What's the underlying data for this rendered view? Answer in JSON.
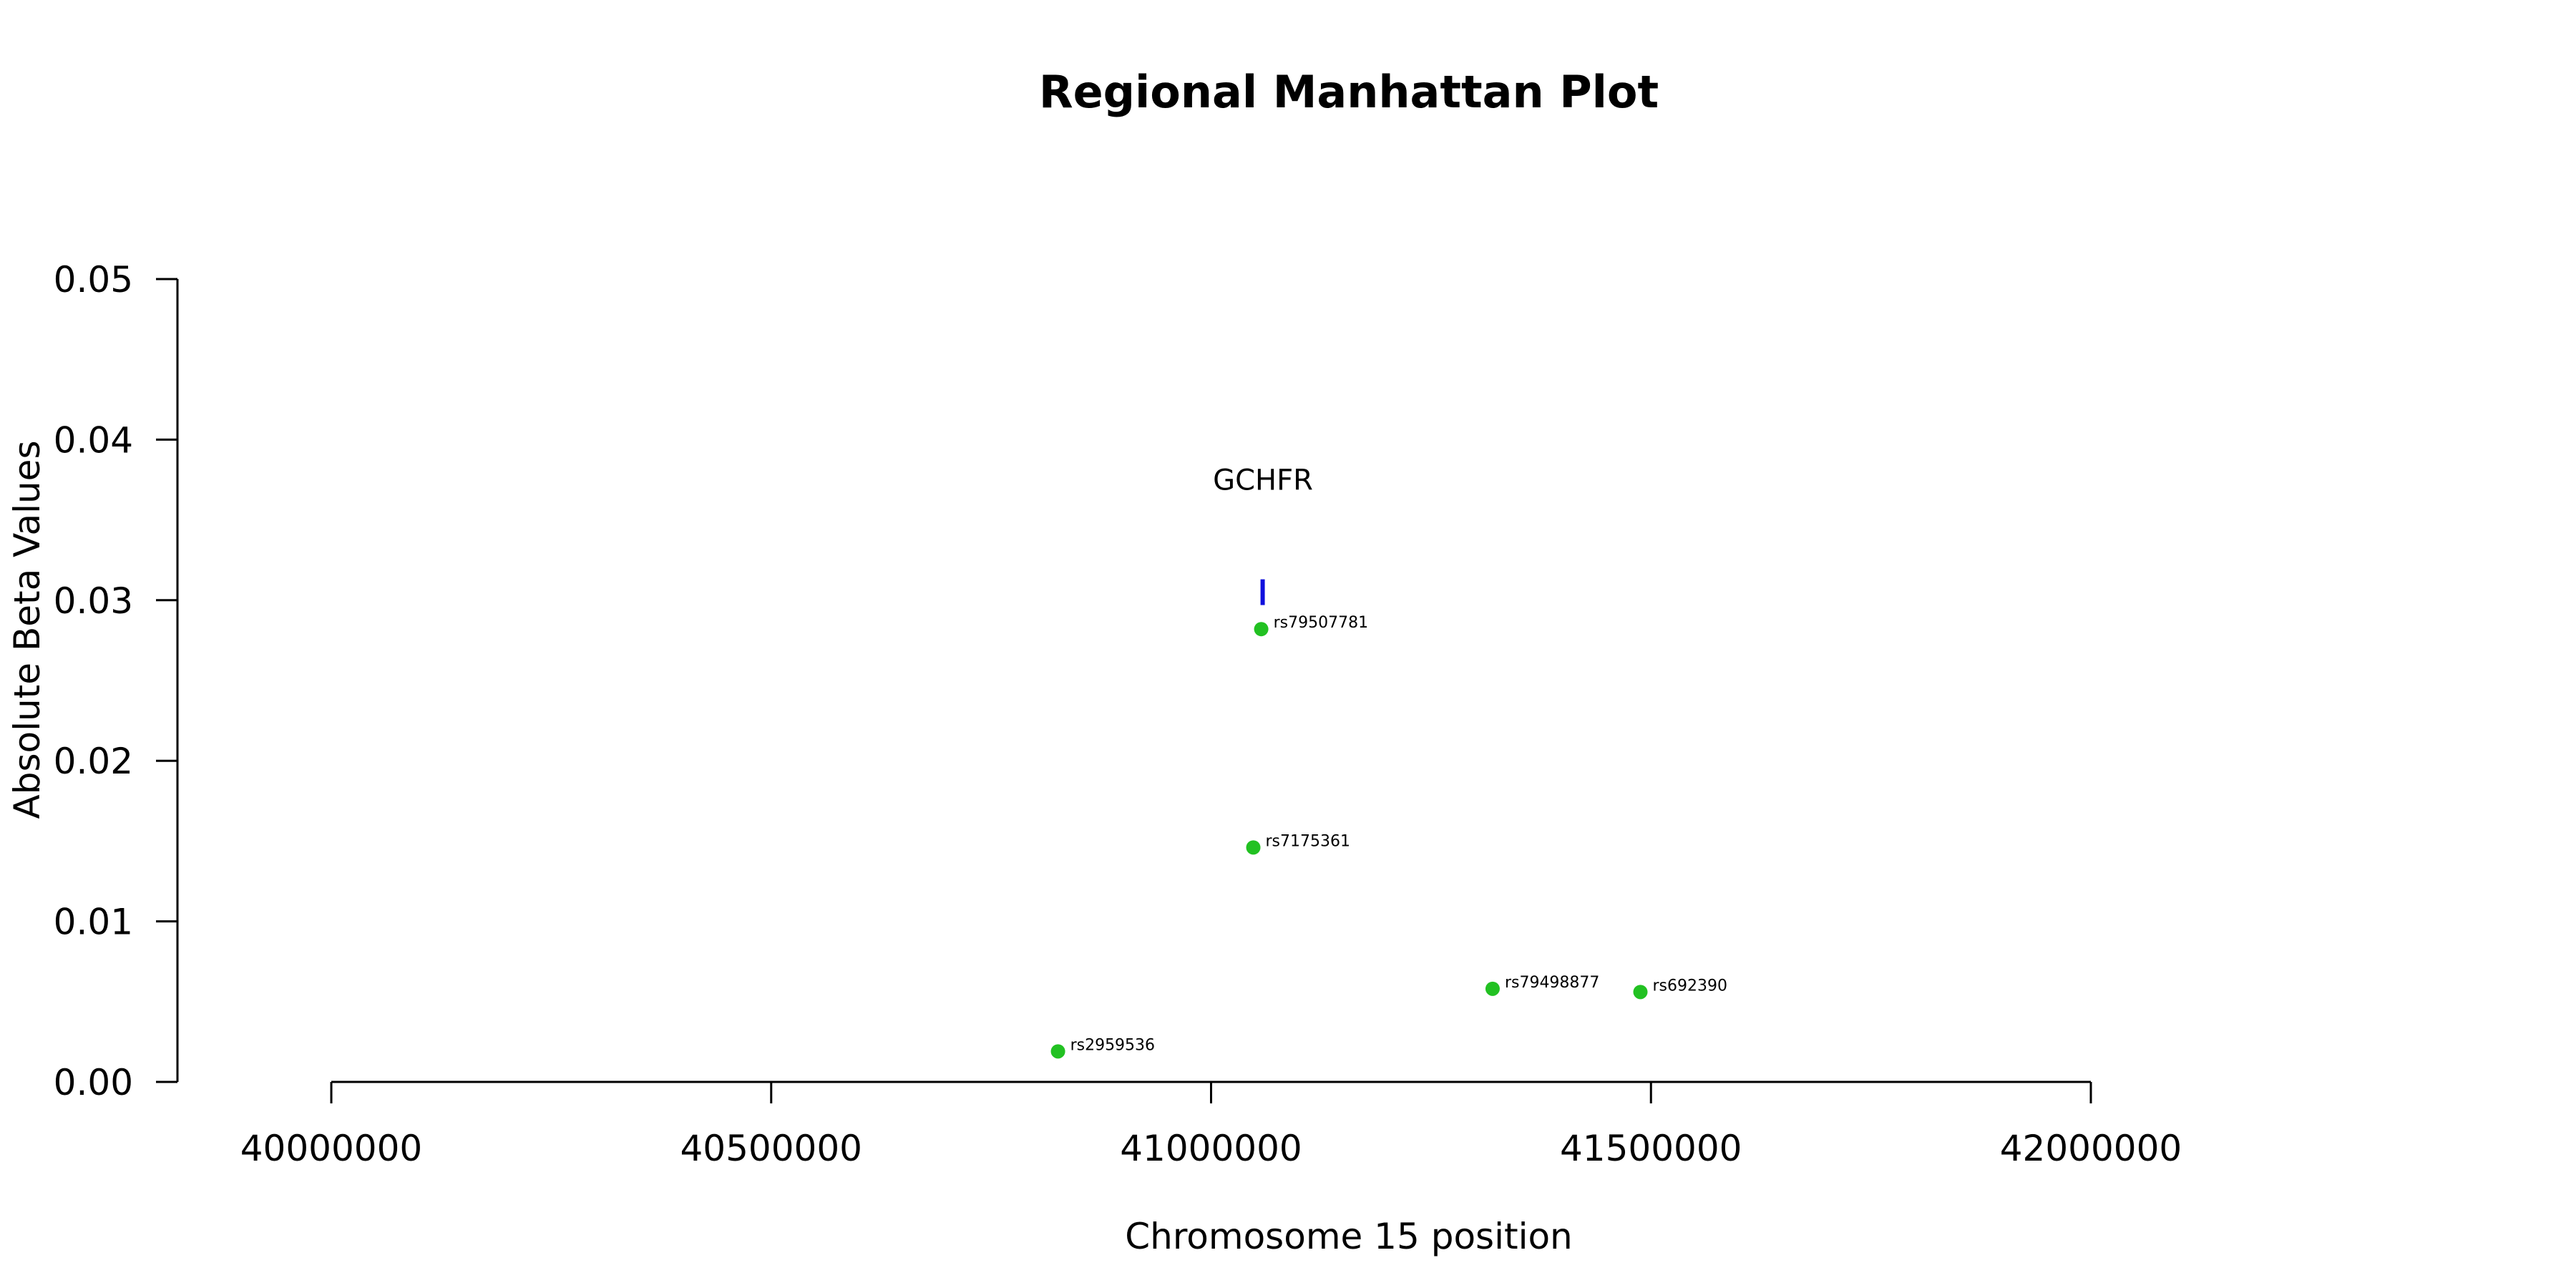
{
  "chart_data": {
    "type": "scatter",
    "title": "Regional Manhattan Plot",
    "xlabel": "Chromosome 15 position",
    "ylabel": "Absolute Beta Values",
    "xlim": [
      40000000,
      42000000
    ],
    "ylim": [
      0,
      0.05
    ],
    "x_ticks": [
      40000000,
      40500000,
      41000000,
      41500000,
      42000000
    ],
    "x_tick_labels": [
      "40000000",
      "40500000",
      "41000000",
      "41500000",
      "42000000"
    ],
    "y_ticks": [
      0,
      0.01,
      0.02,
      0.03,
      0.04,
      0.05
    ],
    "y_tick_labels": [
      "0.00",
      "0.01",
      "0.02",
      "0.03",
      "0.04",
      "0.05"
    ],
    "point_color": "#22c122",
    "gene_color": "#1010dd",
    "points": [
      {
        "label": "rs79507781",
        "x": 41057000,
        "y": 0.0282
      },
      {
        "label": "rs7175361",
        "x": 41048000,
        "y": 0.0146
      },
      {
        "label": "rs79498877",
        "x": 41320000,
        "y": 0.0058
      },
      {
        "label": "rs692390",
        "x": 41488000,
        "y": 0.0056
      },
      {
        "label": "rs2959536",
        "x": 40826000,
        "y": 0.0019
      }
    ],
    "genes": [
      {
        "name": "GCHFR",
        "start": 41057000,
        "end": 41061000,
        "y": 0.0305
      }
    ],
    "grid": false,
    "legend": "none"
  }
}
